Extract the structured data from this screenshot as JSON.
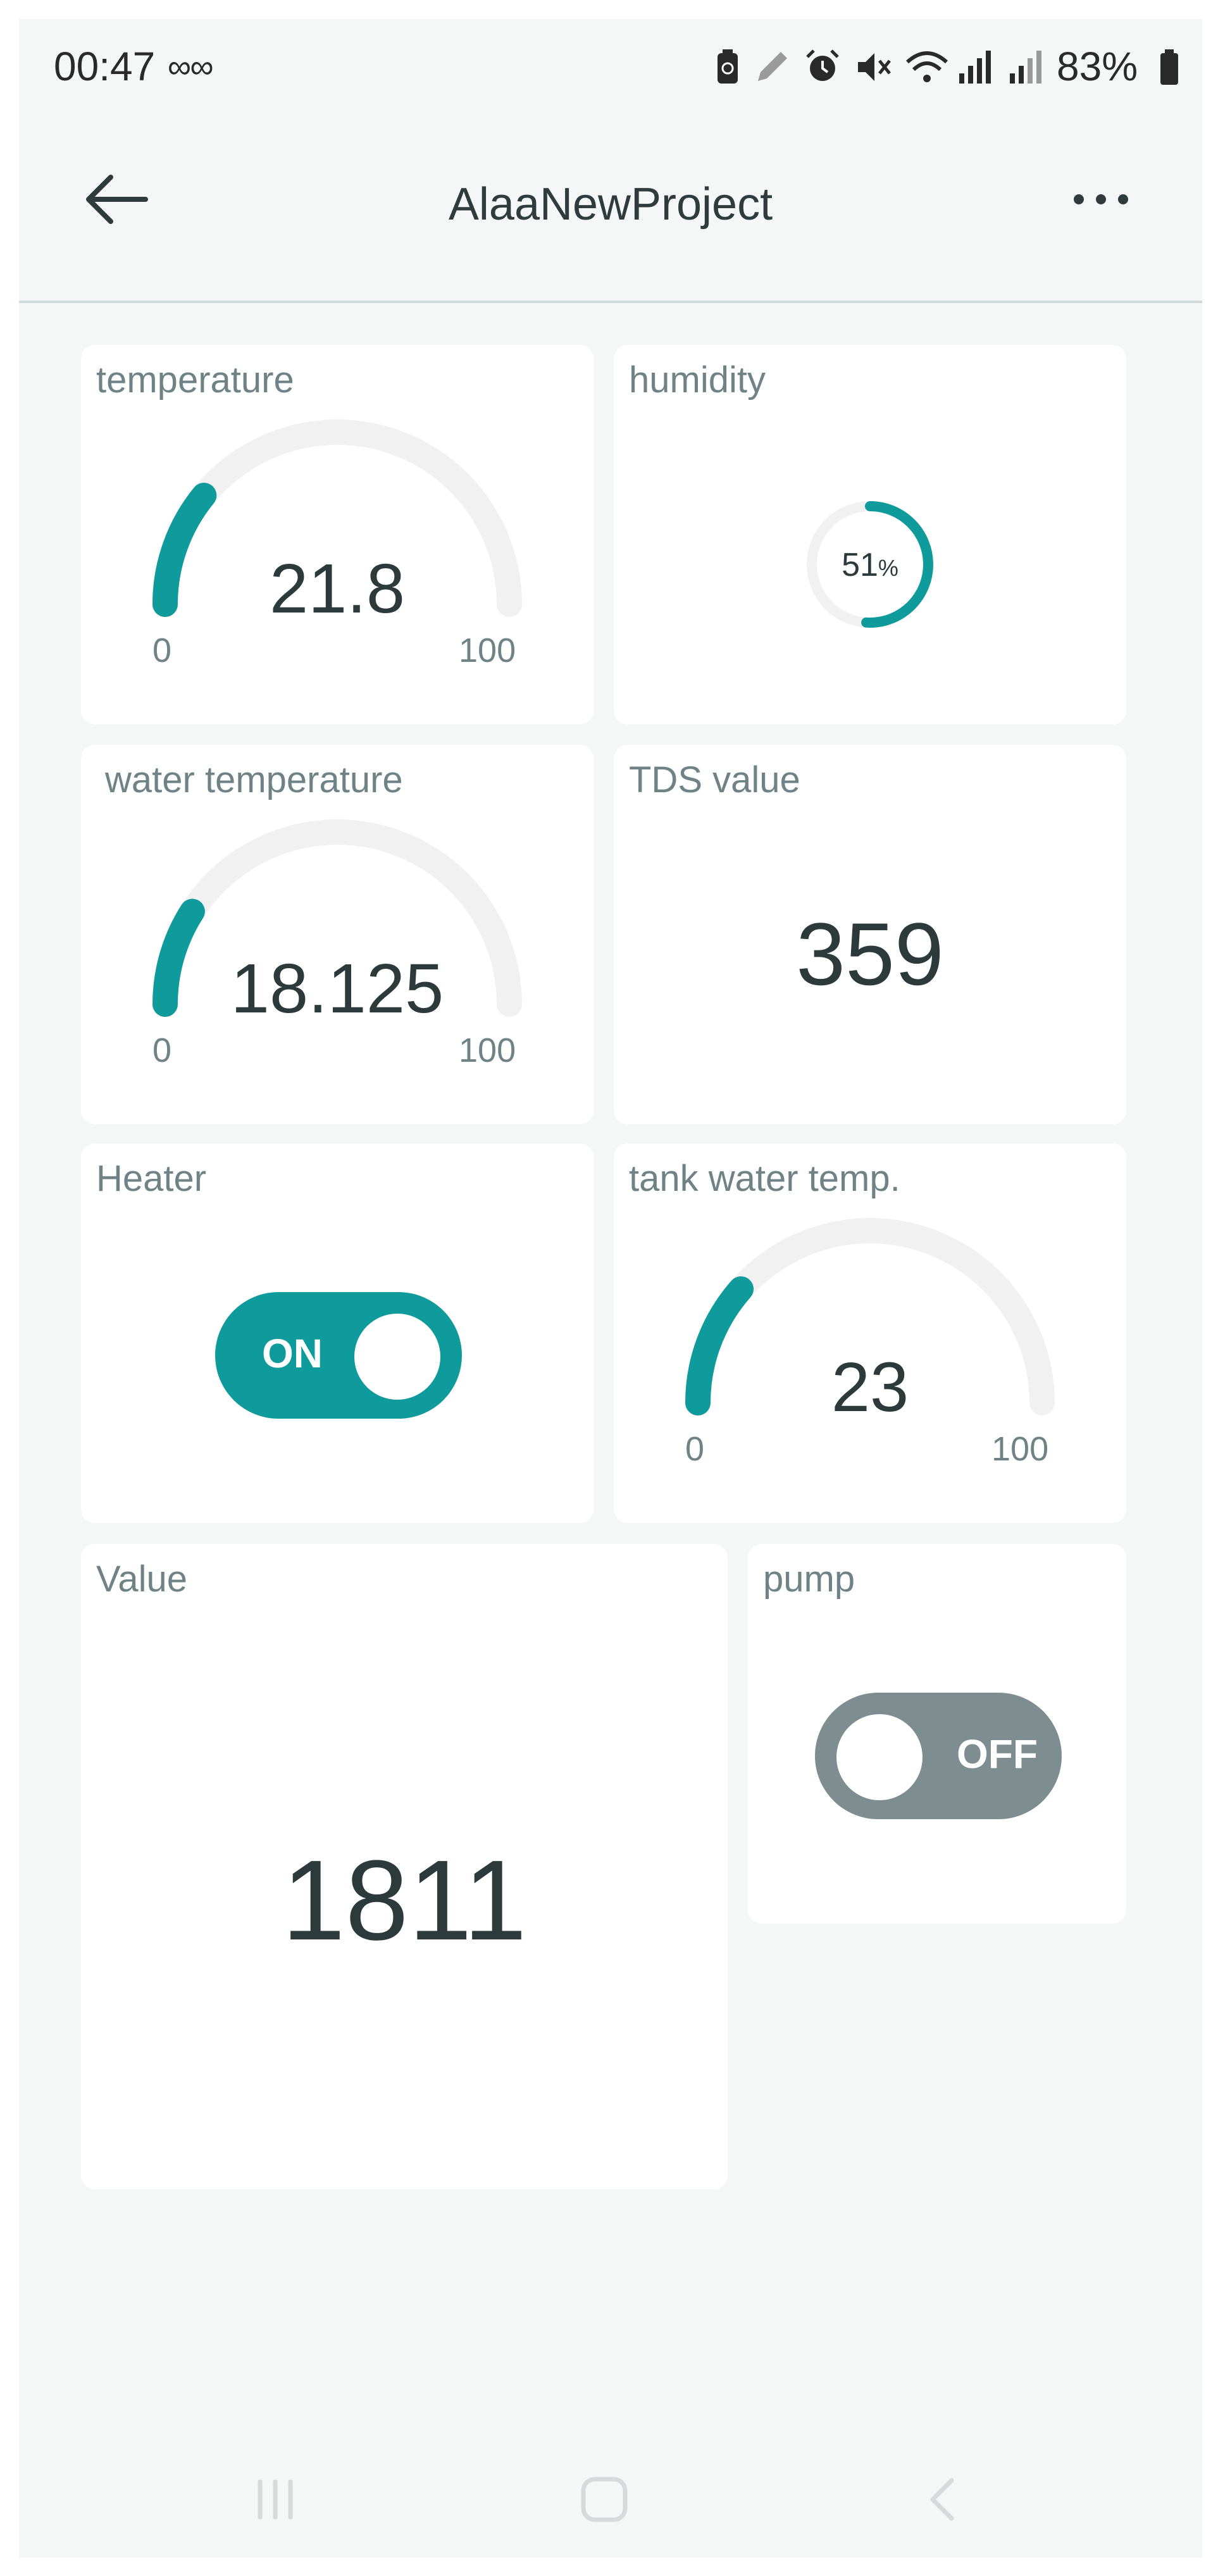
{
  "status_bar": {
    "time": "00:47",
    "infinity_icons": "∞ ∞",
    "battery_percent": "83%"
  },
  "header": {
    "title": "AlaaNewProject"
  },
  "widgets": {
    "temperature": {
      "label": "temperature",
      "value": "21.8",
      "min": "0",
      "max": "100",
      "level": 21.8
    },
    "humidity": {
      "label": "humidity",
      "value": "51",
      "unit": "%",
      "level": 51
    },
    "water_temperature": {
      "label": "water temperature",
      "value": "18.125",
      "min": "0",
      "max": "100",
      "level": 18.125
    },
    "tds": {
      "label": "TDS value",
      "value": "359"
    },
    "heater": {
      "label": "Heater",
      "state": "ON"
    },
    "tank_temp": {
      "label": "tank water temp.",
      "value": "23",
      "min": "0",
      "max": "100",
      "level": 23
    },
    "value": {
      "label": "Value",
      "value": "1811"
    },
    "pump": {
      "label": "pump",
      "state": "OFF"
    }
  },
  "colors": {
    "accent": "#0f9a9c",
    "toggle_off": "#7e8e90",
    "track": "#f1f1f1",
    "text_dark": "#2c3a3c",
    "text_label": "#6f8285"
  }
}
